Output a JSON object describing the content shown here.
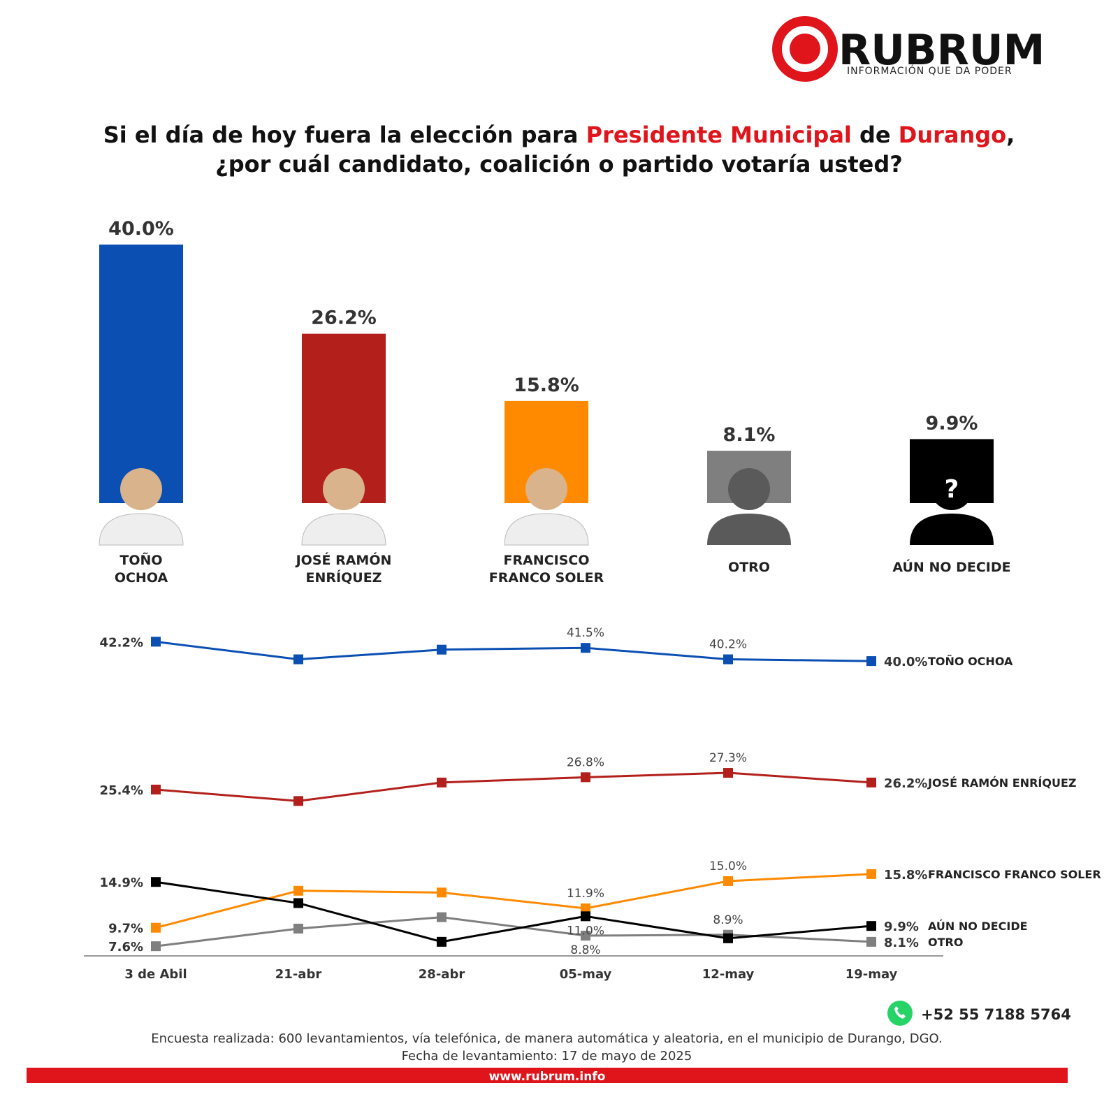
{
  "header": {
    "brand": "RUBRUM",
    "tagline": "INFORMACIÓN QUE DA PODER",
    "title_line1": [
      "Si el día de hoy fuera la elección para ",
      "Presidente Municipal",
      " de ",
      "Durango",
      ","
    ],
    "title_line2": "¿por cuál candidato, coalición o partido votaría usted?"
  },
  "chart_data": [
    {
      "type": "bar",
      "categories": [
        "TOÑO OCHOA",
        "JOSÉ RAMÓN ENRÍQUEZ",
        "FRANCISCO FRANCO SOLER",
        "OTRO",
        "AÚN NO DECIDE"
      ],
      "values": [
        40.0,
        26.2,
        15.8,
        8.1,
        9.9
      ],
      "value_labels": [
        "40.0%",
        "26.2%",
        "15.8%",
        "8.1%",
        "9.9%"
      ],
      "colors": [
        "#0b4fb3",
        "#b3201c",
        "#ff8a00",
        "#7f7f7f",
        "#000000"
      ]
    },
    {
      "type": "line",
      "x": [
        "3 de Abil",
        "21-abr",
        "28-abr",
        "05-may",
        "12-may",
        "19-may"
      ],
      "ylim": [
        6.5,
        43.5
      ],
      "series": [
        {
          "name": "TOÑO OCHOA",
          "color": "#0b4fb3",
          "values": [
            42.2,
            40.2,
            41.3,
            41.5,
            40.2,
            40.0
          ],
          "value_labels": [
            "42.2%",
            null,
            null,
            "41.5%",
            "40.2%",
            "40.0%"
          ]
        },
        {
          "name": "JOSÉ RAMÓN ENRÍQUEZ",
          "color": "#b3201c",
          "values": [
            25.4,
            24.1,
            26.2,
            26.8,
            27.3,
            26.2
          ],
          "value_labels": [
            "25.4%",
            null,
            null,
            "26.8%",
            "27.3%",
            "26.2%"
          ]
        },
        {
          "name": "FRANCISCO FRANCO SOLER",
          "color": "#ff8a00",
          "values": [
            9.7,
            13.9,
            13.7,
            11.9,
            15.0,
            15.8
          ],
          "value_labels": [
            "9.7%",
            null,
            null,
            "11.9%",
            "15.0%",
            "15.8%"
          ]
        },
        {
          "name": "AÚN NO DECIDE",
          "color": "#000000",
          "values": [
            14.9,
            12.5,
            8.1,
            11.0,
            8.5,
            9.9
          ],
          "value_labels": [
            "14.9%",
            null,
            null,
            "11.0%",
            null,
            "9.9%"
          ]
        },
        {
          "name": "OTRO",
          "color": "#7f7f7f",
          "values": [
            7.6,
            9.6,
            10.9,
            8.8,
            8.9,
            8.1
          ],
          "value_labels": [
            "7.6%",
            null,
            null,
            "8.8%",
            "8.9%",
            "8.1%"
          ]
        }
      ]
    }
  ],
  "footer": {
    "phone": "+52 55 7188 5764",
    "note1": "Encuesta realizada: 600 levantamientos, vía telefónica, de manera automática y aleatoria, en el municipio de Durango, DGO.",
    "note2": "Fecha de levantamiento: 17 de mayo de 2025",
    "url": "www.rubrum.info"
  }
}
